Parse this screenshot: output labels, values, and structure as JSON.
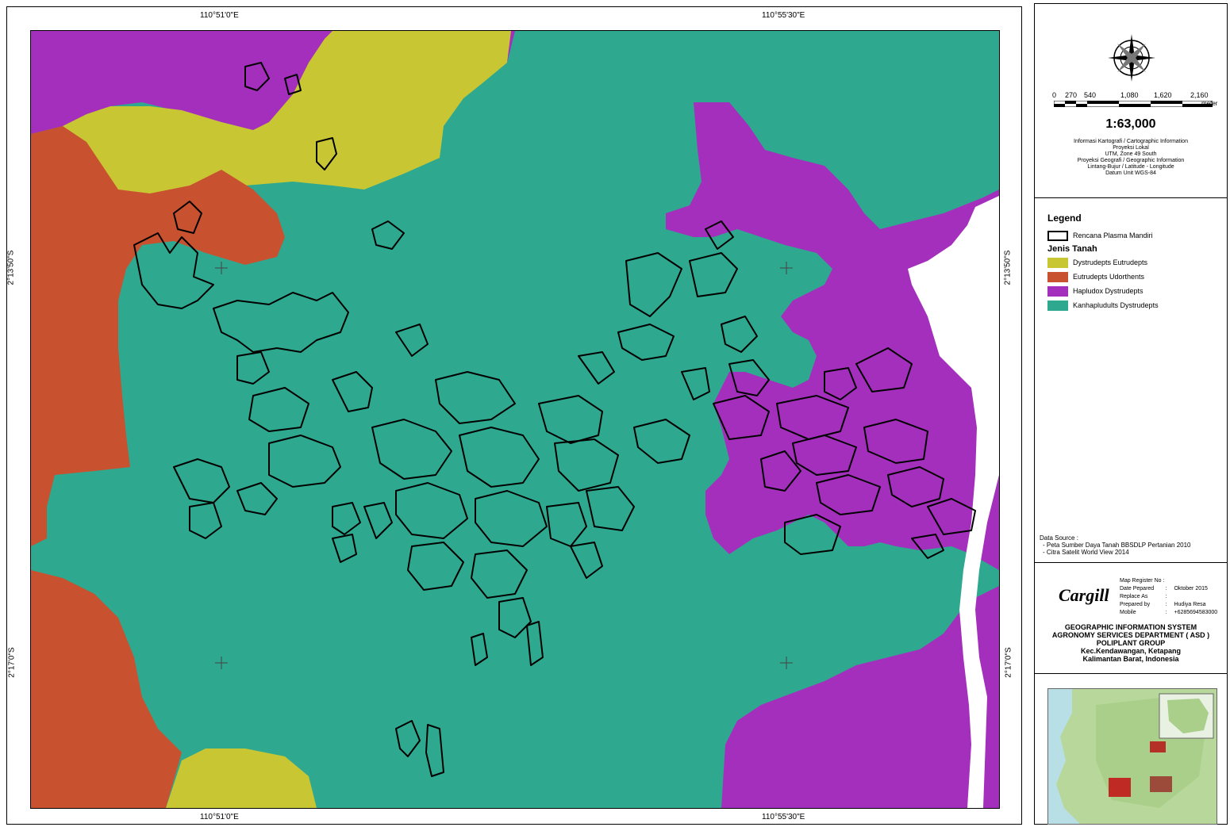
{
  "grid": {
    "lon_labels": [
      "110°51'0\"E",
      "110°55'30\"E"
    ],
    "lat_labels": [
      "2°13'50\"S",
      "2°17'0\"S"
    ]
  },
  "soil_colors": {
    "dystrudepts_eutrudepts": "#c9c634",
    "eutrudepts_udorthents": "#c8512f",
    "hapludox_dystrudepts": "#a52fbd",
    "kanhapludults_dystrudepts": "#2ea98f"
  },
  "scale": {
    "ticks": [
      "0",
      "270",
      "540",
      "1,080",
      "1,620",
      "2,160"
    ],
    "unit": "meter",
    "ratio": "1:63,000"
  },
  "carto_info": [
    "Informasi Kartografi / Cartographic Information",
    "Proyeksi Lokal",
    "UTM, Zone 49 South",
    "Proyeksi Geografi / Geographic Information",
    "Lintang-Bujur / Latitude - Longitude",
    "Datum Unit WGS-84"
  ],
  "legend": {
    "title": "Legend",
    "plan_label": "Rencana Plasma Mandiri",
    "soil_title": "Jenis Tanah",
    "items": [
      {
        "label": "Dystrudepts Eutrudepts",
        "color": "#c9c634"
      },
      {
        "label": "Eutrudepts Udorthents",
        "color": "#c8512f"
      },
      {
        "label": "Hapludox Dystrudepts",
        "color": "#a52fbd"
      },
      {
        "label": "Kanhapludults Dystrudepts",
        "color": "#2ea98f"
      }
    ]
  },
  "data_source": {
    "title": "Data Source :",
    "items": [
      "- Peta Sumber Daya Tanah BBSDLP Pertanian 2010",
      "- Citra Satelit World View 2014"
    ]
  },
  "meta": {
    "logo": "Cargill",
    "rows": [
      {
        "label": "Map Register No",
        "sep": ":",
        "value": ""
      },
      {
        "label": "Date Pepared",
        "sep": ":",
        "value": "Oktober 2015"
      },
      {
        "label": "Replace As",
        "sep": ":",
        "value": ""
      },
      {
        "label": "Prepared by",
        "sep": ":",
        "value": "Hudiya Resa"
      },
      {
        "label": "Mobile",
        "sep": ":",
        "value": "+6285694583000"
      }
    ],
    "org": [
      "GEOGRAPHIC INFORMATION SYSTEM",
      "AGRONOMY SERVICES DEPARTMENT ( ASD )",
      "POLIPLANT GROUP",
      "Kec.Kendawangan, Ketapang",
      "Kalimantan Barat, Indonesia"
    ]
  }
}
